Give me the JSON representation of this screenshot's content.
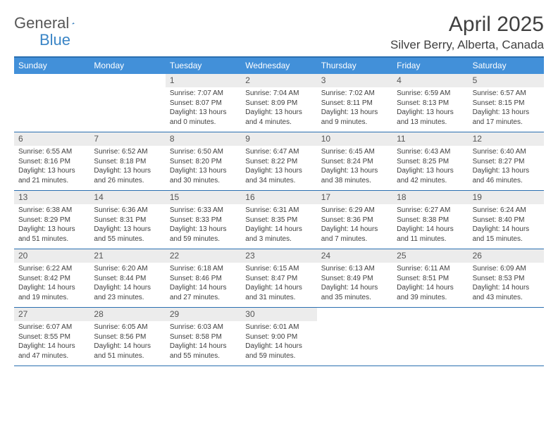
{
  "logo": {
    "text1": "General",
    "text2": "Blue"
  },
  "title": "April 2025",
  "location": "Silver Berry, Alberta, Canada",
  "colors": {
    "header_bg": "#4290d9",
    "header_border": "#2a6fb0",
    "daynum_bg": "#ececec",
    "text": "#404040",
    "logo_gray": "#575757",
    "logo_blue": "#3a85c6"
  },
  "daysOfWeek": [
    "Sunday",
    "Monday",
    "Tuesday",
    "Wednesday",
    "Thursday",
    "Friday",
    "Saturday"
  ],
  "weeks": [
    [
      null,
      null,
      {
        "n": "1",
        "sr": "7:07 AM",
        "ss": "8:07 PM",
        "dl": "13 hours and 0 minutes."
      },
      {
        "n": "2",
        "sr": "7:04 AM",
        "ss": "8:09 PM",
        "dl": "13 hours and 4 minutes."
      },
      {
        "n": "3",
        "sr": "7:02 AM",
        "ss": "8:11 PM",
        "dl": "13 hours and 9 minutes."
      },
      {
        "n": "4",
        "sr": "6:59 AM",
        "ss": "8:13 PM",
        "dl": "13 hours and 13 minutes."
      },
      {
        "n": "5",
        "sr": "6:57 AM",
        "ss": "8:15 PM",
        "dl": "13 hours and 17 minutes."
      }
    ],
    [
      {
        "n": "6",
        "sr": "6:55 AM",
        "ss": "8:16 PM",
        "dl": "13 hours and 21 minutes."
      },
      {
        "n": "7",
        "sr": "6:52 AM",
        "ss": "8:18 PM",
        "dl": "13 hours and 26 minutes."
      },
      {
        "n": "8",
        "sr": "6:50 AM",
        "ss": "8:20 PM",
        "dl": "13 hours and 30 minutes."
      },
      {
        "n": "9",
        "sr": "6:47 AM",
        "ss": "8:22 PM",
        "dl": "13 hours and 34 minutes."
      },
      {
        "n": "10",
        "sr": "6:45 AM",
        "ss": "8:24 PM",
        "dl": "13 hours and 38 minutes."
      },
      {
        "n": "11",
        "sr": "6:43 AM",
        "ss": "8:25 PM",
        "dl": "13 hours and 42 minutes."
      },
      {
        "n": "12",
        "sr": "6:40 AM",
        "ss": "8:27 PM",
        "dl": "13 hours and 46 minutes."
      }
    ],
    [
      {
        "n": "13",
        "sr": "6:38 AM",
        "ss": "8:29 PM",
        "dl": "13 hours and 51 minutes."
      },
      {
        "n": "14",
        "sr": "6:36 AM",
        "ss": "8:31 PM",
        "dl": "13 hours and 55 minutes."
      },
      {
        "n": "15",
        "sr": "6:33 AM",
        "ss": "8:33 PM",
        "dl": "13 hours and 59 minutes."
      },
      {
        "n": "16",
        "sr": "6:31 AM",
        "ss": "8:35 PM",
        "dl": "14 hours and 3 minutes."
      },
      {
        "n": "17",
        "sr": "6:29 AM",
        "ss": "8:36 PM",
        "dl": "14 hours and 7 minutes."
      },
      {
        "n": "18",
        "sr": "6:27 AM",
        "ss": "8:38 PM",
        "dl": "14 hours and 11 minutes."
      },
      {
        "n": "19",
        "sr": "6:24 AM",
        "ss": "8:40 PM",
        "dl": "14 hours and 15 minutes."
      }
    ],
    [
      {
        "n": "20",
        "sr": "6:22 AM",
        "ss": "8:42 PM",
        "dl": "14 hours and 19 minutes."
      },
      {
        "n": "21",
        "sr": "6:20 AM",
        "ss": "8:44 PM",
        "dl": "14 hours and 23 minutes."
      },
      {
        "n": "22",
        "sr": "6:18 AM",
        "ss": "8:46 PM",
        "dl": "14 hours and 27 minutes."
      },
      {
        "n": "23",
        "sr": "6:15 AM",
        "ss": "8:47 PM",
        "dl": "14 hours and 31 minutes."
      },
      {
        "n": "24",
        "sr": "6:13 AM",
        "ss": "8:49 PM",
        "dl": "14 hours and 35 minutes."
      },
      {
        "n": "25",
        "sr": "6:11 AM",
        "ss": "8:51 PM",
        "dl": "14 hours and 39 minutes."
      },
      {
        "n": "26",
        "sr": "6:09 AM",
        "ss": "8:53 PM",
        "dl": "14 hours and 43 minutes."
      }
    ],
    [
      {
        "n": "27",
        "sr": "6:07 AM",
        "ss": "8:55 PM",
        "dl": "14 hours and 47 minutes."
      },
      {
        "n": "28",
        "sr": "6:05 AM",
        "ss": "8:56 PM",
        "dl": "14 hours and 51 minutes."
      },
      {
        "n": "29",
        "sr": "6:03 AM",
        "ss": "8:58 PM",
        "dl": "14 hours and 55 minutes."
      },
      {
        "n": "30",
        "sr": "6:01 AM",
        "ss": "9:00 PM",
        "dl": "14 hours and 59 minutes."
      },
      null,
      null,
      null
    ]
  ],
  "labels": {
    "sunrise": "Sunrise: ",
    "sunset": "Sunset: ",
    "daylight": "Daylight: "
  }
}
